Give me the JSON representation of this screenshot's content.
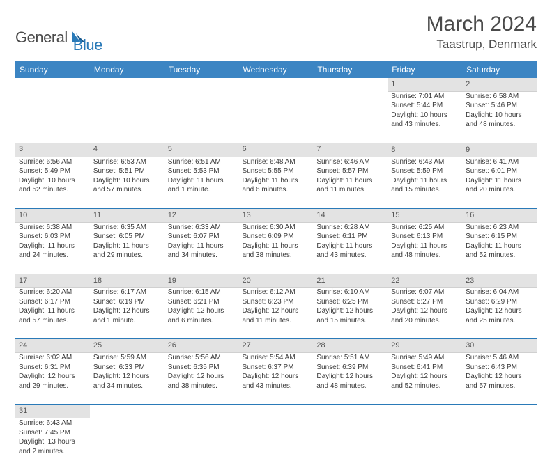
{
  "logo": {
    "word1": "General",
    "word2": "Blue"
  },
  "title": "March 2024",
  "location": "Taastrup, Denmark",
  "colors": {
    "header_bg": "#3c85c3",
    "header_text": "#ffffff",
    "daynum_bg": "#e3e3e3",
    "cell_border": "#2a7ab8",
    "text": "#3a3a3a",
    "logo_gray": "#4a4a4a",
    "logo_blue": "#2a7ab8"
  },
  "weekdays": [
    "Sunday",
    "Monday",
    "Tuesday",
    "Wednesday",
    "Thursday",
    "Friday",
    "Saturday"
  ],
  "weeks": [
    {
      "nums": [
        "",
        "",
        "",
        "",
        "",
        "1",
        "2"
      ],
      "cells": [
        null,
        null,
        null,
        null,
        null,
        {
          "sunrise": "Sunrise: 7:01 AM",
          "sunset": "Sunset: 5:44 PM",
          "daylight": "Daylight: 10 hours and 43 minutes."
        },
        {
          "sunrise": "Sunrise: 6:58 AM",
          "sunset": "Sunset: 5:46 PM",
          "daylight": "Daylight: 10 hours and 48 minutes."
        }
      ]
    },
    {
      "nums": [
        "3",
        "4",
        "5",
        "6",
        "7",
        "8",
        "9"
      ],
      "cells": [
        {
          "sunrise": "Sunrise: 6:56 AM",
          "sunset": "Sunset: 5:49 PM",
          "daylight": "Daylight: 10 hours and 52 minutes."
        },
        {
          "sunrise": "Sunrise: 6:53 AM",
          "sunset": "Sunset: 5:51 PM",
          "daylight": "Daylight: 10 hours and 57 minutes."
        },
        {
          "sunrise": "Sunrise: 6:51 AM",
          "sunset": "Sunset: 5:53 PM",
          "daylight": "Daylight: 11 hours and 1 minute."
        },
        {
          "sunrise": "Sunrise: 6:48 AM",
          "sunset": "Sunset: 5:55 PM",
          "daylight": "Daylight: 11 hours and 6 minutes."
        },
        {
          "sunrise": "Sunrise: 6:46 AM",
          "sunset": "Sunset: 5:57 PM",
          "daylight": "Daylight: 11 hours and 11 minutes."
        },
        {
          "sunrise": "Sunrise: 6:43 AM",
          "sunset": "Sunset: 5:59 PM",
          "daylight": "Daylight: 11 hours and 15 minutes."
        },
        {
          "sunrise": "Sunrise: 6:41 AM",
          "sunset": "Sunset: 6:01 PM",
          "daylight": "Daylight: 11 hours and 20 minutes."
        }
      ]
    },
    {
      "nums": [
        "10",
        "11",
        "12",
        "13",
        "14",
        "15",
        "16"
      ],
      "cells": [
        {
          "sunrise": "Sunrise: 6:38 AM",
          "sunset": "Sunset: 6:03 PM",
          "daylight": "Daylight: 11 hours and 24 minutes."
        },
        {
          "sunrise": "Sunrise: 6:35 AM",
          "sunset": "Sunset: 6:05 PM",
          "daylight": "Daylight: 11 hours and 29 minutes."
        },
        {
          "sunrise": "Sunrise: 6:33 AM",
          "sunset": "Sunset: 6:07 PM",
          "daylight": "Daylight: 11 hours and 34 minutes."
        },
        {
          "sunrise": "Sunrise: 6:30 AM",
          "sunset": "Sunset: 6:09 PM",
          "daylight": "Daylight: 11 hours and 38 minutes."
        },
        {
          "sunrise": "Sunrise: 6:28 AM",
          "sunset": "Sunset: 6:11 PM",
          "daylight": "Daylight: 11 hours and 43 minutes."
        },
        {
          "sunrise": "Sunrise: 6:25 AM",
          "sunset": "Sunset: 6:13 PM",
          "daylight": "Daylight: 11 hours and 48 minutes."
        },
        {
          "sunrise": "Sunrise: 6:23 AM",
          "sunset": "Sunset: 6:15 PM",
          "daylight": "Daylight: 11 hours and 52 minutes."
        }
      ]
    },
    {
      "nums": [
        "17",
        "18",
        "19",
        "20",
        "21",
        "22",
        "23"
      ],
      "cells": [
        {
          "sunrise": "Sunrise: 6:20 AM",
          "sunset": "Sunset: 6:17 PM",
          "daylight": "Daylight: 11 hours and 57 minutes."
        },
        {
          "sunrise": "Sunrise: 6:17 AM",
          "sunset": "Sunset: 6:19 PM",
          "daylight": "Daylight: 12 hours and 1 minute."
        },
        {
          "sunrise": "Sunrise: 6:15 AM",
          "sunset": "Sunset: 6:21 PM",
          "daylight": "Daylight: 12 hours and 6 minutes."
        },
        {
          "sunrise": "Sunrise: 6:12 AM",
          "sunset": "Sunset: 6:23 PM",
          "daylight": "Daylight: 12 hours and 11 minutes."
        },
        {
          "sunrise": "Sunrise: 6:10 AM",
          "sunset": "Sunset: 6:25 PM",
          "daylight": "Daylight: 12 hours and 15 minutes."
        },
        {
          "sunrise": "Sunrise: 6:07 AM",
          "sunset": "Sunset: 6:27 PM",
          "daylight": "Daylight: 12 hours and 20 minutes."
        },
        {
          "sunrise": "Sunrise: 6:04 AM",
          "sunset": "Sunset: 6:29 PM",
          "daylight": "Daylight: 12 hours and 25 minutes."
        }
      ]
    },
    {
      "nums": [
        "24",
        "25",
        "26",
        "27",
        "28",
        "29",
        "30"
      ],
      "cells": [
        {
          "sunrise": "Sunrise: 6:02 AM",
          "sunset": "Sunset: 6:31 PM",
          "daylight": "Daylight: 12 hours and 29 minutes."
        },
        {
          "sunrise": "Sunrise: 5:59 AM",
          "sunset": "Sunset: 6:33 PM",
          "daylight": "Daylight: 12 hours and 34 minutes."
        },
        {
          "sunrise": "Sunrise: 5:56 AM",
          "sunset": "Sunset: 6:35 PM",
          "daylight": "Daylight: 12 hours and 38 minutes."
        },
        {
          "sunrise": "Sunrise: 5:54 AM",
          "sunset": "Sunset: 6:37 PM",
          "daylight": "Daylight: 12 hours and 43 minutes."
        },
        {
          "sunrise": "Sunrise: 5:51 AM",
          "sunset": "Sunset: 6:39 PM",
          "daylight": "Daylight: 12 hours and 48 minutes."
        },
        {
          "sunrise": "Sunrise: 5:49 AM",
          "sunset": "Sunset: 6:41 PM",
          "daylight": "Daylight: 12 hours and 52 minutes."
        },
        {
          "sunrise": "Sunrise: 5:46 AM",
          "sunset": "Sunset: 6:43 PM",
          "daylight": "Daylight: 12 hours and 57 minutes."
        }
      ]
    },
    {
      "nums": [
        "31",
        "",
        "",
        "",
        "",
        "",
        ""
      ],
      "cells": [
        {
          "sunrise": "Sunrise: 6:43 AM",
          "sunset": "Sunset: 7:45 PM",
          "daylight": "Daylight: 13 hours and 2 minutes."
        },
        null,
        null,
        null,
        null,
        null,
        null
      ]
    }
  ]
}
